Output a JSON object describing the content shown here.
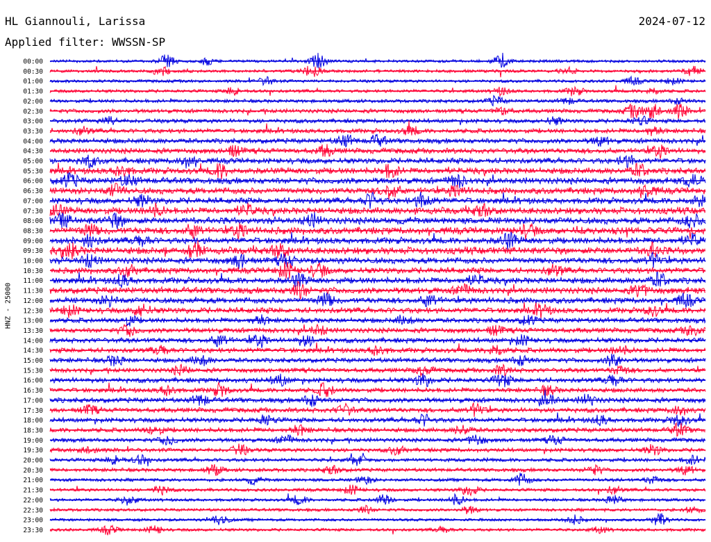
{
  "header": {
    "station": "HL Giannouli, Larissa",
    "date": "2024-07-12",
    "filter": "Applied filter: WWSSN-SP"
  },
  "chart_data": {
    "type": "line",
    "ylabel": "HNZ - 25000",
    "colors": {
      "even": "#0000e0",
      "odd": "#ff0033"
    },
    "rows": [
      {
        "label": "00:00",
        "activity": 0.1,
        "bursts": [
          [
            0.18,
            0.9
          ],
          [
            0.41,
            1.0
          ],
          [
            0.69,
            1.0
          ],
          [
            0.24,
            0.5
          ]
        ]
      },
      {
        "label": "00:30",
        "activity": 0.12,
        "bursts": [
          [
            0.17,
            0.6
          ],
          [
            0.4,
            0.8
          ],
          [
            0.79,
            0.5
          ],
          [
            0.98,
            0.6
          ]
        ]
      },
      {
        "label": "01:00",
        "activity": 0.12,
        "bursts": [
          [
            0.33,
            0.5
          ],
          [
            0.89,
            0.5
          ],
          [
            0.95,
            0.4
          ]
        ]
      },
      {
        "label": "01:30",
        "activity": 0.14,
        "bursts": [
          [
            0.28,
            0.5
          ],
          [
            0.69,
            0.5
          ],
          [
            0.8,
            0.6
          ],
          [
            0.92,
            0.4
          ]
        ]
      },
      {
        "label": "02:00",
        "activity": 0.16,
        "bursts": [
          [
            0.68,
            0.6
          ],
          [
            0.79,
            0.4
          ],
          [
            0.96,
            0.4
          ]
        ]
      },
      {
        "label": "02:30",
        "activity": 0.22,
        "bursts": [
          [
            0.89,
            0.8
          ],
          [
            0.92,
            1.0
          ],
          [
            0.96,
            0.9
          ],
          [
            0.69,
            0.5
          ]
        ]
      },
      {
        "label": "03:00",
        "activity": 0.22,
        "bursts": [
          [
            0.09,
            0.5
          ],
          [
            0.77,
            0.5
          ],
          [
            0.9,
            0.6
          ]
        ]
      },
      {
        "label": "03:30",
        "activity": 0.25,
        "bursts": [
          [
            0.05,
            0.5
          ],
          [
            0.55,
            0.6
          ],
          [
            0.92,
            0.6
          ]
        ]
      },
      {
        "label": "04:00",
        "activity": 0.3,
        "bursts": [
          [
            0.45,
            0.8
          ],
          [
            0.5,
            0.7
          ],
          [
            0.84,
            0.6
          ]
        ]
      },
      {
        "label": "04:30",
        "activity": 0.32,
        "bursts": [
          [
            0.28,
            0.7
          ],
          [
            0.42,
            0.7
          ],
          [
            0.93,
            0.8
          ]
        ]
      },
      {
        "label": "05:00",
        "activity": 0.35,
        "bursts": [
          [
            0.06,
            0.7
          ],
          [
            0.21,
            0.7
          ],
          [
            0.88,
            0.7
          ]
        ]
      },
      {
        "label": "05:30",
        "activity": 0.4,
        "bursts": [
          [
            0.11,
            0.8
          ],
          [
            0.26,
            0.9
          ],
          [
            0.52,
            0.8
          ],
          [
            0.9,
            0.8
          ]
        ]
      },
      {
        "label": "06:00",
        "activity": 0.42,
        "bursts": [
          [
            0.03,
            0.9
          ],
          [
            0.12,
            0.7
          ],
          [
            0.62,
            0.8
          ],
          [
            0.98,
            0.9
          ]
        ]
      },
      {
        "label": "06:30",
        "activity": 0.42,
        "bursts": [
          [
            0.1,
            0.8
          ],
          [
            0.52,
            1.0
          ],
          [
            0.62,
            0.8
          ],
          [
            0.91,
            0.7
          ]
        ]
      },
      {
        "label": "07:00",
        "activity": 0.4,
        "bursts": [
          [
            0.14,
            0.7
          ],
          [
            0.49,
            0.9
          ],
          [
            0.57,
            1.0
          ],
          [
            0.99,
            0.6
          ]
        ]
      },
      {
        "label": "07:30",
        "activity": 0.45,
        "bursts": [
          [
            0.01,
            0.8
          ],
          [
            0.16,
            0.7
          ],
          [
            0.3,
            0.7
          ],
          [
            0.66,
            0.8
          ]
        ]
      },
      {
        "label": "08:00",
        "activity": 0.45,
        "bursts": [
          [
            0.02,
            0.8
          ],
          [
            0.1,
            0.8
          ],
          [
            0.4,
            0.8
          ],
          [
            0.98,
            0.8
          ]
        ]
      },
      {
        "label": "08:30",
        "activity": 0.48,
        "bursts": [
          [
            0.06,
            0.8
          ],
          [
            0.22,
            0.8
          ],
          [
            0.29,
            0.9
          ],
          [
            0.73,
            0.8
          ]
        ]
      },
      {
        "label": "09:00",
        "activity": 0.42,
        "bursts": [
          [
            0.06,
            0.8
          ],
          [
            0.14,
            0.7
          ],
          [
            0.7,
            1.0
          ],
          [
            0.98,
            0.7
          ]
        ]
      },
      {
        "label": "09:30",
        "activity": 0.48,
        "bursts": [
          [
            0.03,
            0.9
          ],
          [
            0.22,
            1.0
          ],
          [
            0.35,
            0.9
          ],
          [
            0.92,
            0.8
          ]
        ]
      },
      {
        "label": "10:00",
        "activity": 0.4,
        "bursts": [
          [
            0.06,
            0.8
          ],
          [
            0.29,
            0.9
          ],
          [
            0.36,
            0.8
          ],
          [
            0.92,
            0.8
          ]
        ]
      },
      {
        "label": "10:30",
        "activity": 0.38,
        "bursts": [
          [
            0.12,
            0.8
          ],
          [
            0.36,
            1.0
          ],
          [
            0.41,
            0.9
          ],
          [
            0.77,
            0.7
          ]
        ]
      },
      {
        "label": "11:00",
        "activity": 0.4,
        "bursts": [
          [
            0.11,
            0.7
          ],
          [
            0.38,
            0.8
          ],
          [
            0.93,
            0.9
          ],
          [
            0.65,
            0.6
          ]
        ]
      },
      {
        "label": "11:30",
        "activity": 0.42,
        "bursts": [
          [
            0.38,
            1.0
          ],
          [
            0.63,
            0.7
          ],
          [
            0.9,
            0.8
          ]
        ]
      },
      {
        "label": "12:00",
        "activity": 0.38,
        "bursts": [
          [
            0.09,
            0.7
          ],
          [
            0.42,
            0.9
          ],
          [
            0.58,
            0.8
          ],
          [
            0.97,
            0.8
          ]
        ]
      },
      {
        "label": "12:30",
        "activity": 0.36,
        "bursts": [
          [
            0.03,
            0.7
          ],
          [
            0.14,
            0.8
          ],
          [
            0.75,
            0.8
          ],
          [
            0.92,
            0.6
          ]
        ]
      },
      {
        "label": "13:00",
        "activity": 0.3,
        "bursts": [
          [
            0.12,
            0.6
          ],
          [
            0.32,
            0.6
          ],
          [
            0.54,
            0.6
          ],
          [
            0.73,
            0.6
          ]
        ]
      },
      {
        "label": "13:30",
        "activity": 0.3,
        "bursts": [
          [
            0.12,
            0.7
          ],
          [
            0.41,
            0.6
          ],
          [
            0.68,
            0.6
          ],
          [
            0.98,
            0.7
          ]
        ]
      },
      {
        "label": "14:00",
        "activity": 0.3,
        "bursts": [
          [
            0.26,
            0.8
          ],
          [
            0.32,
            0.8
          ],
          [
            0.39,
            0.7
          ],
          [
            0.72,
            0.6
          ]
        ]
      },
      {
        "label": "14:30",
        "activity": 0.3,
        "bursts": [
          [
            0.17,
            0.6
          ],
          [
            0.5,
            0.7
          ],
          [
            0.68,
            0.7
          ],
          [
            0.87,
            0.6
          ]
        ]
      },
      {
        "label": "15:00",
        "activity": 0.28,
        "bursts": [
          [
            0.1,
            0.7
          ],
          [
            0.23,
            0.7
          ],
          [
            0.72,
            0.7
          ],
          [
            0.86,
            0.8
          ]
        ]
      },
      {
        "label": "15:30",
        "activity": 0.26,
        "bursts": [
          [
            0.2,
            0.6
          ],
          [
            0.57,
            0.7
          ],
          [
            0.69,
            0.6
          ],
          [
            0.87,
            0.6
          ]
        ]
      },
      {
        "label": "16:00",
        "activity": 0.3,
        "bursts": [
          [
            0.35,
            0.7
          ],
          [
            0.57,
            0.8
          ],
          [
            0.69,
            0.9
          ],
          [
            0.86,
            0.8
          ]
        ]
      },
      {
        "label": "16:30",
        "activity": 0.26,
        "bursts": [
          [
            0.18,
            0.7
          ],
          [
            0.26,
            0.8
          ],
          [
            0.42,
            0.9
          ],
          [
            0.76,
            0.6
          ]
        ]
      },
      {
        "label": "17:00",
        "activity": 0.3,
        "bursts": [
          [
            0.23,
            0.7
          ],
          [
            0.4,
            0.8
          ],
          [
            0.76,
            0.8
          ],
          [
            0.82,
            0.7
          ]
        ]
      },
      {
        "label": "17:30",
        "activity": 0.28,
        "bursts": [
          [
            0.06,
            0.6
          ],
          [
            0.45,
            0.7
          ],
          [
            0.65,
            0.8
          ],
          [
            0.96,
            0.6
          ]
        ]
      },
      {
        "label": "18:00",
        "activity": 0.28,
        "bursts": [
          [
            0.33,
            0.7
          ],
          [
            0.57,
            0.7
          ],
          [
            0.84,
            0.6
          ],
          [
            0.96,
            0.7
          ]
        ]
      },
      {
        "label": "18:30",
        "activity": 0.26,
        "bursts": [
          [
            0.16,
            0.6
          ],
          [
            0.38,
            0.6
          ],
          [
            0.63,
            0.6
          ],
          [
            0.96,
            0.8
          ]
        ]
      },
      {
        "label": "19:00",
        "activity": 0.22,
        "bursts": [
          [
            0.18,
            0.6
          ],
          [
            0.36,
            0.6
          ],
          [
            0.65,
            0.7
          ],
          [
            0.77,
            0.6
          ]
        ]
      },
      {
        "label": "19:30",
        "activity": 0.2,
        "bursts": [
          [
            0.06,
            0.5
          ],
          [
            0.29,
            0.7
          ],
          [
            0.53,
            0.6
          ],
          [
            0.92,
            0.7
          ]
        ]
      },
      {
        "label": "20:00",
        "activity": 0.18,
        "bursts": [
          [
            0.1,
            0.6
          ],
          [
            0.14,
            0.6
          ],
          [
            0.47,
            0.6
          ],
          [
            0.98,
            0.6
          ]
        ]
      },
      {
        "label": "20:30",
        "activity": 0.18,
        "bursts": [
          [
            0.25,
            0.7
          ],
          [
            0.43,
            0.6
          ],
          [
            0.83,
            0.6
          ],
          [
            0.97,
            0.6
          ]
        ]
      },
      {
        "label": "21:00",
        "activity": 0.14,
        "bursts": [
          [
            0.31,
            0.5
          ],
          [
            0.48,
            0.5
          ],
          [
            0.72,
            0.9
          ],
          [
            0.92,
            0.5
          ]
        ]
      },
      {
        "label": "21:30",
        "activity": 0.14,
        "bursts": [
          [
            0.17,
            0.6
          ],
          [
            0.46,
            0.6
          ],
          [
            0.64,
            0.8
          ],
          [
            0.86,
            0.5
          ]
        ]
      },
      {
        "label": "22:00",
        "activity": 0.12,
        "bursts": [
          [
            0.12,
            0.7
          ],
          [
            0.38,
            0.6
          ],
          [
            0.51,
            0.7
          ],
          [
            0.62,
            0.7
          ],
          [
            0.86,
            0.6
          ]
        ]
      },
      {
        "label": "22:30",
        "activity": 0.12,
        "bursts": [
          [
            0.48,
            0.5
          ],
          [
            0.64,
            0.5
          ],
          [
            0.98,
            0.4
          ]
        ]
      },
      {
        "label": "23:00",
        "activity": 0.1,
        "bursts": [
          [
            0.26,
            0.8
          ],
          [
            0.8,
            0.6
          ],
          [
            0.93,
            0.8
          ]
        ]
      },
      {
        "label": "23:30",
        "activity": 0.12,
        "bursts": [
          [
            0.09,
            0.6
          ],
          [
            0.16,
            0.5
          ],
          [
            0.6,
            0.4
          ],
          [
            0.84,
            0.4
          ]
        ]
      }
    ]
  }
}
